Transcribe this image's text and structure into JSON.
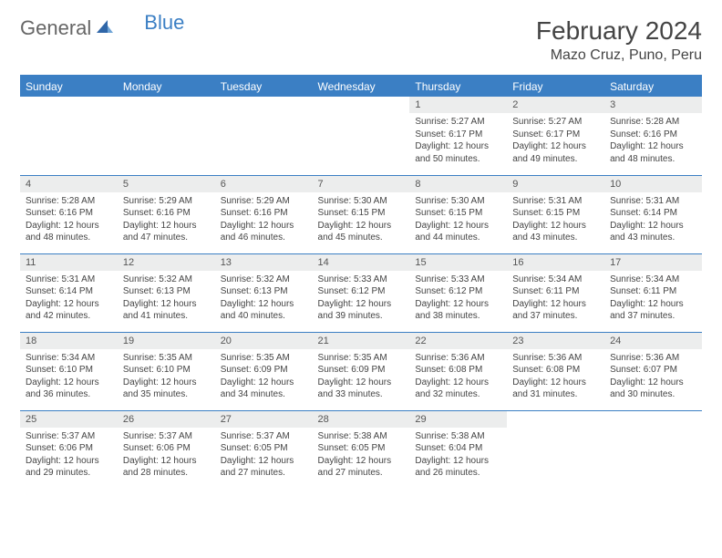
{
  "brand": {
    "general": "General",
    "blue": "Blue"
  },
  "title": "February 2024",
  "location": "Mazo Cruz, Puno, Peru",
  "colors": {
    "header_bg": "#3b7fc4",
    "header_text": "#ffffff",
    "daynum_bg": "#eceded",
    "rule": "#3b7fc4",
    "text": "#444444"
  },
  "weekdays": [
    "Sunday",
    "Monday",
    "Tuesday",
    "Wednesday",
    "Thursday",
    "Friday",
    "Saturday"
  ],
  "weeks": [
    [
      null,
      null,
      null,
      null,
      {
        "n": "1",
        "sr": "Sunrise: 5:27 AM",
        "ss": "Sunset: 6:17 PM",
        "dl": "Daylight: 12 hours and 50 minutes."
      },
      {
        "n": "2",
        "sr": "Sunrise: 5:27 AM",
        "ss": "Sunset: 6:17 PM",
        "dl": "Daylight: 12 hours and 49 minutes."
      },
      {
        "n": "3",
        "sr": "Sunrise: 5:28 AM",
        "ss": "Sunset: 6:16 PM",
        "dl": "Daylight: 12 hours and 48 minutes."
      }
    ],
    [
      {
        "n": "4",
        "sr": "Sunrise: 5:28 AM",
        "ss": "Sunset: 6:16 PM",
        "dl": "Daylight: 12 hours and 48 minutes."
      },
      {
        "n": "5",
        "sr": "Sunrise: 5:29 AM",
        "ss": "Sunset: 6:16 PM",
        "dl": "Daylight: 12 hours and 47 minutes."
      },
      {
        "n": "6",
        "sr": "Sunrise: 5:29 AM",
        "ss": "Sunset: 6:16 PM",
        "dl": "Daylight: 12 hours and 46 minutes."
      },
      {
        "n": "7",
        "sr": "Sunrise: 5:30 AM",
        "ss": "Sunset: 6:15 PM",
        "dl": "Daylight: 12 hours and 45 minutes."
      },
      {
        "n": "8",
        "sr": "Sunrise: 5:30 AM",
        "ss": "Sunset: 6:15 PM",
        "dl": "Daylight: 12 hours and 44 minutes."
      },
      {
        "n": "9",
        "sr": "Sunrise: 5:31 AM",
        "ss": "Sunset: 6:15 PM",
        "dl": "Daylight: 12 hours and 43 minutes."
      },
      {
        "n": "10",
        "sr": "Sunrise: 5:31 AM",
        "ss": "Sunset: 6:14 PM",
        "dl": "Daylight: 12 hours and 43 minutes."
      }
    ],
    [
      {
        "n": "11",
        "sr": "Sunrise: 5:31 AM",
        "ss": "Sunset: 6:14 PM",
        "dl": "Daylight: 12 hours and 42 minutes."
      },
      {
        "n": "12",
        "sr": "Sunrise: 5:32 AM",
        "ss": "Sunset: 6:13 PM",
        "dl": "Daylight: 12 hours and 41 minutes."
      },
      {
        "n": "13",
        "sr": "Sunrise: 5:32 AM",
        "ss": "Sunset: 6:13 PM",
        "dl": "Daylight: 12 hours and 40 minutes."
      },
      {
        "n": "14",
        "sr": "Sunrise: 5:33 AM",
        "ss": "Sunset: 6:12 PM",
        "dl": "Daylight: 12 hours and 39 minutes."
      },
      {
        "n": "15",
        "sr": "Sunrise: 5:33 AM",
        "ss": "Sunset: 6:12 PM",
        "dl": "Daylight: 12 hours and 38 minutes."
      },
      {
        "n": "16",
        "sr": "Sunrise: 5:34 AM",
        "ss": "Sunset: 6:11 PM",
        "dl": "Daylight: 12 hours and 37 minutes."
      },
      {
        "n": "17",
        "sr": "Sunrise: 5:34 AM",
        "ss": "Sunset: 6:11 PM",
        "dl": "Daylight: 12 hours and 37 minutes."
      }
    ],
    [
      {
        "n": "18",
        "sr": "Sunrise: 5:34 AM",
        "ss": "Sunset: 6:10 PM",
        "dl": "Daylight: 12 hours and 36 minutes."
      },
      {
        "n": "19",
        "sr": "Sunrise: 5:35 AM",
        "ss": "Sunset: 6:10 PM",
        "dl": "Daylight: 12 hours and 35 minutes."
      },
      {
        "n": "20",
        "sr": "Sunrise: 5:35 AM",
        "ss": "Sunset: 6:09 PM",
        "dl": "Daylight: 12 hours and 34 minutes."
      },
      {
        "n": "21",
        "sr": "Sunrise: 5:35 AM",
        "ss": "Sunset: 6:09 PM",
        "dl": "Daylight: 12 hours and 33 minutes."
      },
      {
        "n": "22",
        "sr": "Sunrise: 5:36 AM",
        "ss": "Sunset: 6:08 PM",
        "dl": "Daylight: 12 hours and 32 minutes."
      },
      {
        "n": "23",
        "sr": "Sunrise: 5:36 AM",
        "ss": "Sunset: 6:08 PM",
        "dl": "Daylight: 12 hours and 31 minutes."
      },
      {
        "n": "24",
        "sr": "Sunrise: 5:36 AM",
        "ss": "Sunset: 6:07 PM",
        "dl": "Daylight: 12 hours and 30 minutes."
      }
    ],
    [
      {
        "n": "25",
        "sr": "Sunrise: 5:37 AM",
        "ss": "Sunset: 6:06 PM",
        "dl": "Daylight: 12 hours and 29 minutes."
      },
      {
        "n": "26",
        "sr": "Sunrise: 5:37 AM",
        "ss": "Sunset: 6:06 PM",
        "dl": "Daylight: 12 hours and 28 minutes."
      },
      {
        "n": "27",
        "sr": "Sunrise: 5:37 AM",
        "ss": "Sunset: 6:05 PM",
        "dl": "Daylight: 12 hours and 27 minutes."
      },
      {
        "n": "28",
        "sr": "Sunrise: 5:38 AM",
        "ss": "Sunset: 6:05 PM",
        "dl": "Daylight: 12 hours and 27 minutes."
      },
      {
        "n": "29",
        "sr": "Sunrise: 5:38 AM",
        "ss": "Sunset: 6:04 PM",
        "dl": "Daylight: 12 hours and 26 minutes."
      },
      null,
      null
    ]
  ]
}
